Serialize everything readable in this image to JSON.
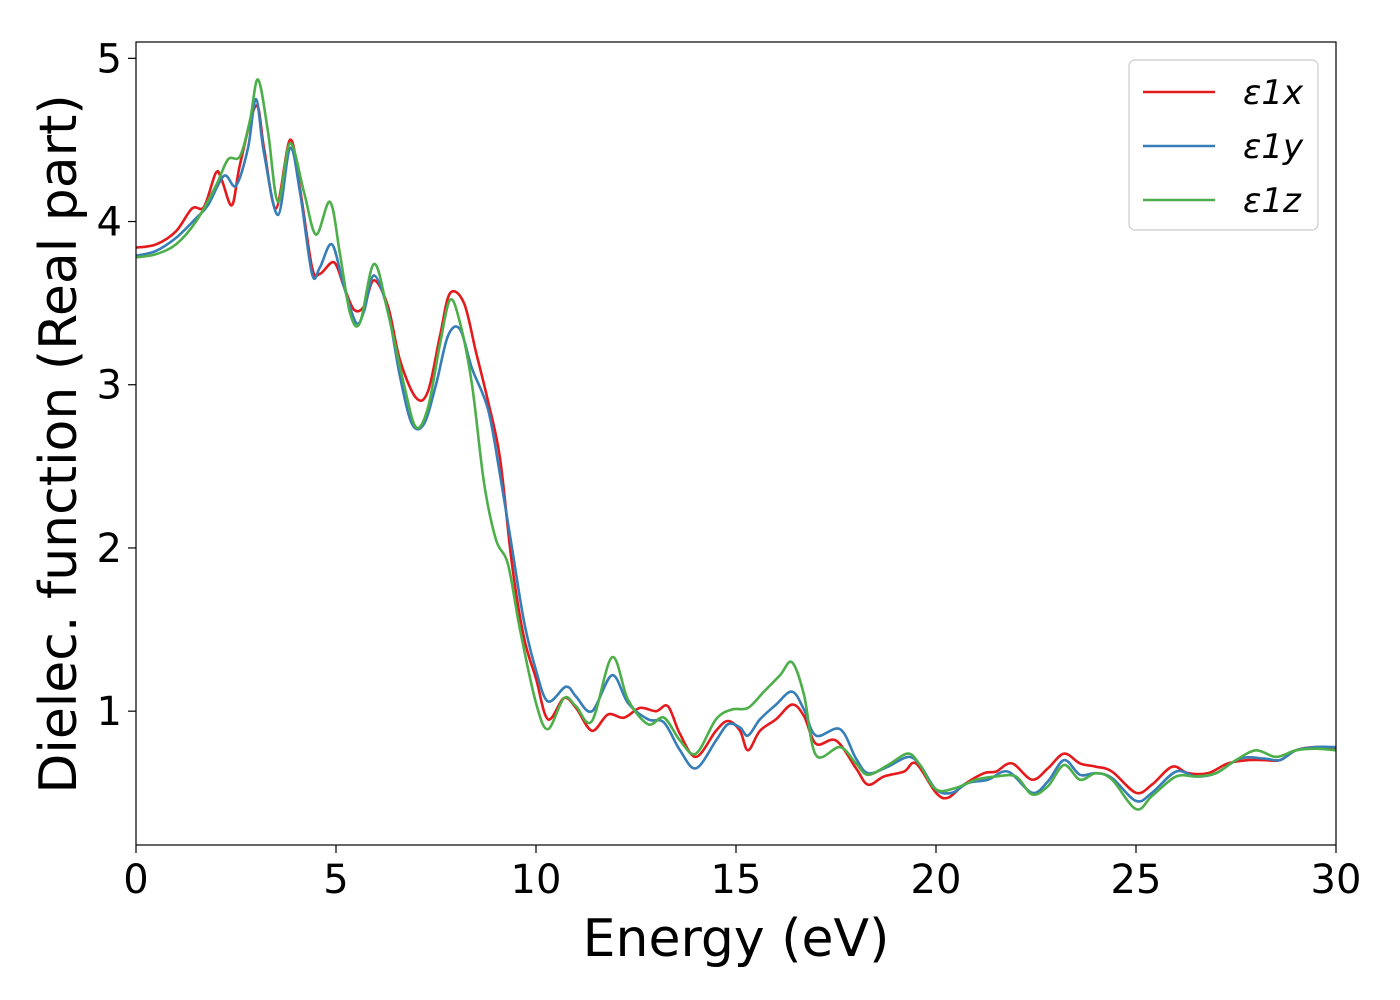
{
  "chart_data": {
    "type": "line",
    "xlabel": "Energy (eV)",
    "ylabel": "Dielec. function (Real part)",
    "xlim": [
      0,
      30
    ],
    "ylim": [
      0.18,
      5.1
    ],
    "xticks": [
      0,
      5,
      10,
      15,
      20,
      25,
      30
    ],
    "xtick_labels": [
      "0",
      "5",
      "10",
      "15",
      "20",
      "25",
      "30"
    ],
    "yticks": [
      1,
      2,
      3,
      4,
      5
    ],
    "ytick_labels": [
      "1",
      "2",
      "3",
      "4",
      "5"
    ],
    "grid": false,
    "legend_position": "top-right",
    "series": [
      {
        "name": "ε1x",
        "color": "#e41a1c",
        "points": [
          [
            0,
            3.84
          ],
          [
            0.5,
            3.86
          ],
          [
            1.0,
            3.94
          ],
          [
            1.4,
            4.08
          ],
          [
            1.7,
            4.09
          ],
          [
            2.0,
            4.3
          ],
          [
            2.15,
            4.25
          ],
          [
            2.4,
            4.1
          ],
          [
            2.6,
            4.35
          ],
          [
            3.0,
            4.71
          ],
          [
            3.2,
            4.45
          ],
          [
            3.5,
            4.08
          ],
          [
            3.85,
            4.5
          ],
          [
            4.1,
            4.2
          ],
          [
            4.4,
            3.72
          ],
          [
            4.6,
            3.68
          ],
          [
            4.95,
            3.75
          ],
          [
            5.2,
            3.6
          ],
          [
            5.45,
            3.46
          ],
          [
            5.7,
            3.48
          ],
          [
            5.95,
            3.64
          ],
          [
            6.3,
            3.48
          ],
          [
            6.6,
            3.15
          ],
          [
            7.0,
            2.92
          ],
          [
            7.3,
            2.96
          ],
          [
            7.6,
            3.3
          ],
          [
            7.85,
            3.56
          ],
          [
            8.2,
            3.5
          ],
          [
            8.5,
            3.2
          ],
          [
            8.8,
            2.9
          ],
          [
            9.1,
            2.55
          ],
          [
            9.4,
            1.9
          ],
          [
            9.7,
            1.45
          ],
          [
            10.0,
            1.2
          ],
          [
            10.3,
            0.95
          ],
          [
            10.7,
            1.08
          ],
          [
            11.0,
            1.02
          ],
          [
            11.4,
            0.88
          ],
          [
            11.8,
            0.98
          ],
          [
            12.2,
            0.96
          ],
          [
            12.6,
            1.02
          ],
          [
            13.0,
            1.0
          ],
          [
            13.3,
            1.03
          ],
          [
            13.6,
            0.86
          ],
          [
            14.0,
            0.72
          ],
          [
            14.5,
            0.88
          ],
          [
            14.8,
            0.94
          ],
          [
            15.1,
            0.88
          ],
          [
            15.3,
            0.76
          ],
          [
            15.6,
            0.88
          ],
          [
            16.0,
            0.95
          ],
          [
            16.4,
            1.04
          ],
          [
            16.7,
            0.97
          ],
          [
            17.0,
            0.8
          ],
          [
            17.5,
            0.82
          ],
          [
            18.0,
            0.65
          ],
          [
            18.3,
            0.55
          ],
          [
            18.7,
            0.6
          ],
          [
            19.2,
            0.63
          ],
          [
            19.5,
            0.68
          ],
          [
            20.0,
            0.5
          ],
          [
            20.3,
            0.47
          ],
          [
            20.7,
            0.55
          ],
          [
            21.2,
            0.62
          ],
          [
            21.5,
            0.63
          ],
          [
            21.9,
            0.68
          ],
          [
            22.4,
            0.58
          ],
          [
            22.8,
            0.65
          ],
          [
            23.2,
            0.74
          ],
          [
            23.6,
            0.68
          ],
          [
            24.0,
            0.66
          ],
          [
            24.4,
            0.63
          ],
          [
            25.0,
            0.5
          ],
          [
            25.4,
            0.55
          ],
          [
            25.9,
            0.66
          ],
          [
            26.3,
            0.62
          ],
          [
            26.8,
            0.62
          ],
          [
            27.3,
            0.68
          ],
          [
            27.8,
            0.7
          ],
          [
            28.2,
            0.7
          ],
          [
            28.6,
            0.7
          ],
          [
            29.0,
            0.76
          ],
          [
            29.5,
            0.78
          ],
          [
            30.0,
            0.77
          ]
        ]
      },
      {
        "name": "ε1y",
        "color": "#377eb8",
        "points": [
          [
            0,
            3.79
          ],
          [
            0.5,
            3.82
          ],
          [
            1.0,
            3.9
          ],
          [
            1.5,
            4.02
          ],
          [
            1.8,
            4.1
          ],
          [
            2.2,
            4.28
          ],
          [
            2.5,
            4.22
          ],
          [
            2.8,
            4.45
          ],
          [
            3.0,
            4.75
          ],
          [
            3.2,
            4.42
          ],
          [
            3.55,
            4.04
          ],
          [
            3.85,
            4.45
          ],
          [
            4.1,
            4.18
          ],
          [
            4.4,
            3.68
          ],
          [
            4.6,
            3.72
          ],
          [
            4.9,
            3.86
          ],
          [
            5.2,
            3.6
          ],
          [
            5.5,
            3.38
          ],
          [
            5.7,
            3.45
          ],
          [
            5.95,
            3.67
          ],
          [
            6.3,
            3.45
          ],
          [
            6.6,
            3.05
          ],
          [
            6.9,
            2.76
          ],
          [
            7.2,
            2.76
          ],
          [
            7.5,
            3.0
          ],
          [
            7.8,
            3.3
          ],
          [
            8.1,
            3.34
          ],
          [
            8.4,
            3.1
          ],
          [
            8.8,
            2.85
          ],
          [
            9.1,
            2.45
          ],
          [
            9.4,
            2.0
          ],
          [
            9.7,
            1.55
          ],
          [
            10.0,
            1.25
          ],
          [
            10.3,
            1.06
          ],
          [
            10.75,
            1.15
          ],
          [
            11.0,
            1.09
          ],
          [
            11.4,
            1.0
          ],
          [
            11.9,
            1.22
          ],
          [
            12.3,
            1.05
          ],
          [
            12.8,
            0.95
          ],
          [
            13.2,
            0.93
          ],
          [
            13.6,
            0.76
          ],
          [
            14.0,
            0.65
          ],
          [
            14.5,
            0.82
          ],
          [
            14.8,
            0.92
          ],
          [
            15.1,
            0.9
          ],
          [
            15.3,
            0.85
          ],
          [
            15.6,
            0.95
          ],
          [
            16.0,
            1.04
          ],
          [
            16.4,
            1.12
          ],
          [
            16.7,
            1.01
          ],
          [
            17.0,
            0.85
          ],
          [
            17.6,
            0.89
          ],
          [
            18.0,
            0.71
          ],
          [
            18.3,
            0.62
          ],
          [
            18.8,
            0.66
          ],
          [
            19.3,
            0.72
          ],
          [
            19.6,
            0.67
          ],
          [
            20.0,
            0.52
          ],
          [
            20.4,
            0.5
          ],
          [
            20.8,
            0.56
          ],
          [
            21.3,
            0.58
          ],
          [
            21.8,
            0.63
          ],
          [
            22.4,
            0.5
          ],
          [
            22.8,
            0.57
          ],
          [
            23.2,
            0.7
          ],
          [
            23.6,
            0.61
          ],
          [
            24.0,
            0.62
          ],
          [
            24.4,
            0.59
          ],
          [
            25.0,
            0.45
          ],
          [
            25.4,
            0.5
          ],
          [
            26.0,
            0.63
          ],
          [
            26.5,
            0.6
          ],
          [
            27.0,
            0.62
          ],
          [
            27.6,
            0.71
          ],
          [
            28.2,
            0.71
          ],
          [
            28.6,
            0.7
          ],
          [
            29.0,
            0.76
          ],
          [
            29.5,
            0.78
          ],
          [
            30.0,
            0.78
          ]
        ]
      },
      {
        "name": "ε1z",
        "color": "#4daf4a",
        "points": [
          [
            0,
            3.78
          ],
          [
            0.5,
            3.8
          ],
          [
            1.0,
            3.86
          ],
          [
            1.5,
            4.0
          ],
          [
            2.0,
            4.22
          ],
          [
            2.3,
            4.38
          ],
          [
            2.6,
            4.4
          ],
          [
            2.85,
            4.62
          ],
          [
            3.05,
            4.87
          ],
          [
            3.3,
            4.55
          ],
          [
            3.55,
            4.12
          ],
          [
            3.85,
            4.48
          ],
          [
            4.2,
            4.18
          ],
          [
            4.5,
            3.92
          ],
          [
            4.85,
            4.12
          ],
          [
            5.1,
            3.8
          ],
          [
            5.35,
            3.44
          ],
          [
            5.6,
            3.38
          ],
          [
            5.95,
            3.74
          ],
          [
            6.3,
            3.44
          ],
          [
            6.7,
            3.0
          ],
          [
            7.0,
            2.74
          ],
          [
            7.3,
            2.86
          ],
          [
            7.6,
            3.25
          ],
          [
            7.85,
            3.52
          ],
          [
            8.1,
            3.38
          ],
          [
            8.4,
            3.0
          ],
          [
            8.7,
            2.4
          ],
          [
            9.0,
            2.05
          ],
          [
            9.3,
            1.9
          ],
          [
            9.6,
            1.5
          ],
          [
            10.0,
            1.05
          ],
          [
            10.3,
            0.89
          ],
          [
            10.7,
            1.08
          ],
          [
            11.0,
            1.03
          ],
          [
            11.4,
            0.94
          ],
          [
            11.9,
            1.33
          ],
          [
            12.3,
            1.07
          ],
          [
            12.8,
            0.92
          ],
          [
            13.2,
            0.96
          ],
          [
            13.6,
            0.82
          ],
          [
            14.0,
            0.74
          ],
          [
            14.5,
            0.95
          ],
          [
            14.9,
            1.01
          ],
          [
            15.3,
            1.02
          ],
          [
            15.7,
            1.12
          ],
          [
            16.1,
            1.22
          ],
          [
            16.4,
            1.3
          ],
          [
            16.7,
            1.1
          ],
          [
            17.0,
            0.73
          ],
          [
            17.6,
            0.78
          ],
          [
            18.0,
            0.68
          ],
          [
            18.3,
            0.61
          ],
          [
            18.8,
            0.67
          ],
          [
            19.3,
            0.74
          ],
          [
            19.6,
            0.67
          ],
          [
            20.0,
            0.52
          ],
          [
            20.5,
            0.53
          ],
          [
            21.0,
            0.58
          ],
          [
            21.5,
            0.6
          ],
          [
            22.0,
            0.6
          ],
          [
            22.4,
            0.49
          ],
          [
            22.8,
            0.54
          ],
          [
            23.2,
            0.67
          ],
          [
            23.6,
            0.58
          ],
          [
            24.0,
            0.62
          ],
          [
            24.4,
            0.58
          ],
          [
            25.0,
            0.4
          ],
          [
            25.4,
            0.48
          ],
          [
            26.0,
            0.6
          ],
          [
            26.5,
            0.6
          ],
          [
            27.0,
            0.62
          ],
          [
            27.5,
            0.7
          ],
          [
            28.0,
            0.76
          ],
          [
            28.5,
            0.72
          ],
          [
            29.0,
            0.76
          ],
          [
            29.5,
            0.77
          ],
          [
            30.0,
            0.76
          ]
        ]
      }
    ]
  }
}
